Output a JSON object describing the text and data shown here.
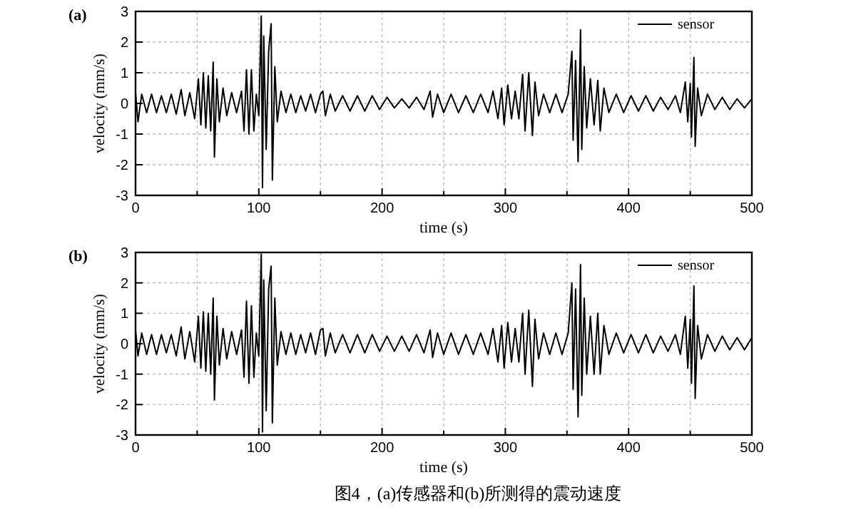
{
  "chart_data": [
    {
      "type": "line",
      "title": "(a)",
      "xlabel": "time (s)",
      "ylabel": "velocity (mm/s)",
      "xlim": [
        0,
        500
      ],
      "ylim": [
        -3,
        3
      ],
      "xticks": [
        0,
        {
          "value": 50,
          "label": null
        },
        100,
        {
          "value": 150,
          "label": null
        },
        200,
        {
          "value": 250,
          "label": null
        },
        300,
        {
          "value": 350,
          "label": null
        },
        400,
        {
          "value": 450,
          "label": null
        },
        500
      ],
      "yticks": [
        -3,
        -2,
        -1,
        0,
        1,
        2,
        3
      ],
      "grid": true,
      "legend": "top right",
      "line_style": "solid",
      "marker": "none",
      "series": [
        {
          "name": "sensor",
          "color": "#000000",
          "x": [
            0,
            2,
            5,
            9,
            13,
            17,
            21,
            25,
            29,
            33,
            37,
            40,
            44,
            48,
            51,
            53,
            55,
            57,
            59,
            61,
            63,
            64,
            66,
            68,
            71,
            74,
            78,
            82,
            86,
            88,
            90,
            92,
            94,
            96,
            98,
            100,
            102,
            103,
            104,
            106,
            108,
            110,
            111,
            113,
            115,
            118,
            122,
            126,
            130,
            134,
            138,
            142,
            146,
            150,
            152,
            154,
            158,
            162,
            168,
            174,
            180,
            186,
            192,
            198,
            204,
            210,
            216,
            222,
            228,
            234,
            239,
            241,
            245,
            250,
            256,
            262,
            268,
            274,
            280,
            286,
            290,
            294,
            297,
            299,
            302,
            305,
            308,
            311,
            314,
            316,
            319,
            322,
            324,
            327,
            331,
            336,
            341,
            346,
            351,
            354,
            355,
            357,
            359,
            361,
            362,
            364,
            366,
            369,
            372,
            375,
            377,
            380,
            384,
            390,
            396,
            402,
            408,
            414,
            420,
            426,
            432,
            438,
            442,
            446,
            448,
            450,
            451,
            453,
            454,
            456,
            459,
            464,
            470,
            476,
            482,
            488,
            494,
            500
          ],
          "values": [
            0.35,
            -0.6,
            0.3,
            -0.3,
            0.3,
            -0.3,
            0.25,
            -0.3,
            0.3,
            -0.35,
            0.45,
            -0.4,
            0.35,
            -0.5,
            0.8,
            -0.7,
            1.0,
            -0.8,
            0.9,
            -0.9,
            1.35,
            -1.75,
            0.8,
            -0.6,
            0.5,
            -0.4,
            0.35,
            -0.3,
            0.4,
            -0.9,
            1.1,
            -1.0,
            1.1,
            -0.9,
            0.3,
            -0.4,
            2.85,
            -2.75,
            2.2,
            -1.5,
            1.7,
            2.6,
            -2.5,
            1.2,
            -0.6,
            0.4,
            -0.3,
            0.3,
            -0.3,
            0.25,
            -0.25,
            0.3,
            -0.3,
            0.3,
            0.4,
            -0.4,
            0.3,
            -0.25,
            0.25,
            -0.25,
            0.25,
            -0.25,
            0.25,
            -0.2,
            0.2,
            -0.15,
            0.15,
            -0.15,
            0.2,
            -0.2,
            0.4,
            -0.45,
            0.3,
            -0.3,
            0.3,
            -0.3,
            0.25,
            -0.3,
            0.3,
            -0.3,
            0.4,
            -0.5,
            0.5,
            -0.7,
            0.6,
            -0.5,
            0.4,
            -0.5,
            0.95,
            -0.9,
            1.0,
            -1.05,
            0.7,
            -0.4,
            0.3,
            -0.3,
            0.3,
            -0.3,
            0.3,
            1.7,
            -1.2,
            1.4,
            -1.9,
            2.4,
            -1.5,
            1.2,
            -0.8,
            0.8,
            -0.7,
            0.75,
            -0.9,
            0.5,
            -0.3,
            0.3,
            -0.3,
            0.25,
            -0.25,
            0.25,
            -0.25,
            0.2,
            -0.2,
            0.25,
            -0.3,
            0.7,
            -0.6,
            0.65,
            -1.1,
            1.5,
            -1.4,
            0.5,
            -0.4,
            0.3,
            -0.2,
            0.2,
            -0.2,
            0.15,
            -0.15,
            0.15
          ]
        }
      ]
    },
    {
      "type": "line",
      "title": "(b)",
      "xlabel": "time (s)",
      "ylabel": "velocity (mm/s)",
      "xlim": [
        0,
        500
      ],
      "ylim": [
        -3,
        3
      ],
      "xticks": [
        0,
        {
          "value": 50,
          "label": null
        },
        100,
        {
          "value": 150,
          "label": null
        },
        200,
        {
          "value": 250,
          "label": null
        },
        300,
        {
          "value": 350,
          "label": null
        },
        400,
        {
          "value": 450,
          "label": null
        },
        500
      ],
      "yticks": [
        -3,
        -2,
        -1,
        0,
        1,
        2,
        3
      ],
      "grid": true,
      "legend": "top right",
      "line_style": "solid",
      "marker": "none",
      "series": [
        {
          "name": "sensor",
          "color": "#000000",
          "x": [
            0,
            2,
            5,
            9,
            13,
            17,
            21,
            25,
            29,
            33,
            37,
            40,
            44,
            48,
            51,
            53,
            55,
            57,
            59,
            61,
            63,
            64,
            66,
            68,
            71,
            74,
            78,
            82,
            86,
            88,
            90,
            92,
            94,
            96,
            98,
            100,
            102,
            103,
            104,
            106,
            108,
            110,
            111,
            113,
            115,
            118,
            122,
            126,
            130,
            134,
            138,
            142,
            146,
            150,
            152,
            154,
            158,
            162,
            168,
            174,
            180,
            186,
            192,
            198,
            204,
            210,
            216,
            222,
            228,
            234,
            239,
            241,
            245,
            250,
            256,
            262,
            268,
            274,
            280,
            286,
            290,
            294,
            297,
            299,
            302,
            305,
            308,
            311,
            314,
            316,
            319,
            322,
            324,
            327,
            331,
            336,
            341,
            346,
            351,
            354,
            355,
            357,
            359,
            361,
            362,
            364,
            366,
            369,
            372,
            375,
            377,
            380,
            384,
            390,
            396,
            402,
            408,
            414,
            420,
            426,
            432,
            438,
            442,
            446,
            448,
            450,
            451,
            453,
            454,
            456,
            459,
            464,
            470,
            476,
            482,
            488,
            494,
            500
          ],
          "values": [
            0.45,
            -0.4,
            0.35,
            -0.35,
            0.3,
            -0.35,
            0.3,
            -0.3,
            0.3,
            -0.4,
            0.55,
            -0.5,
            0.4,
            -0.6,
            0.9,
            -0.8,
            1.05,
            -0.9,
            1.0,
            -1.0,
            1.5,
            -1.85,
            0.9,
            -0.7,
            0.5,
            -0.5,
            0.4,
            -0.35,
            0.45,
            -1.1,
            1.4,
            -1.3,
            1.25,
            -1.1,
            0.35,
            -0.4,
            2.95,
            -2.9,
            2.1,
            -2.2,
            1.8,
            2.55,
            -2.6,
            1.5,
            -0.7,
            0.4,
            -0.35,
            0.35,
            -0.35,
            0.3,
            -0.3,
            0.35,
            -0.35,
            0.45,
            0.5,
            -0.4,
            0.35,
            -0.3,
            0.3,
            -0.3,
            0.3,
            -0.3,
            0.3,
            -0.25,
            0.25,
            -0.25,
            0.25,
            -0.25,
            0.3,
            -0.3,
            0.45,
            -0.45,
            0.35,
            -0.35,
            0.35,
            -0.35,
            0.3,
            -0.35,
            0.35,
            -0.35,
            0.5,
            -0.6,
            0.6,
            -0.8,
            0.7,
            -0.6,
            0.5,
            -0.6,
            1.0,
            -1.0,
            1.1,
            -1.4,
            0.8,
            -0.5,
            0.35,
            -0.35,
            0.35,
            -0.35,
            0.35,
            2.0,
            -1.5,
            1.8,
            -2.4,
            2.6,
            -1.7,
            1.5,
            -1.0,
            0.9,
            -1.0,
            1.0,
            -1.0,
            0.6,
            -0.35,
            0.35,
            -0.3,
            0.3,
            -0.3,
            0.3,
            -0.3,
            0.25,
            -0.25,
            0.3,
            -0.35,
            0.9,
            -0.8,
            0.8,
            -1.3,
            1.9,
            -1.8,
            0.6,
            -0.5,
            0.3,
            -0.25,
            0.25,
            -0.2,
            0.2,
            -0.2,
            0.2
          ]
        }
      ],
      "annotations": [
        "图4，(a)传感器和(b)所测得的震动速度"
      ]
    }
  ]
}
